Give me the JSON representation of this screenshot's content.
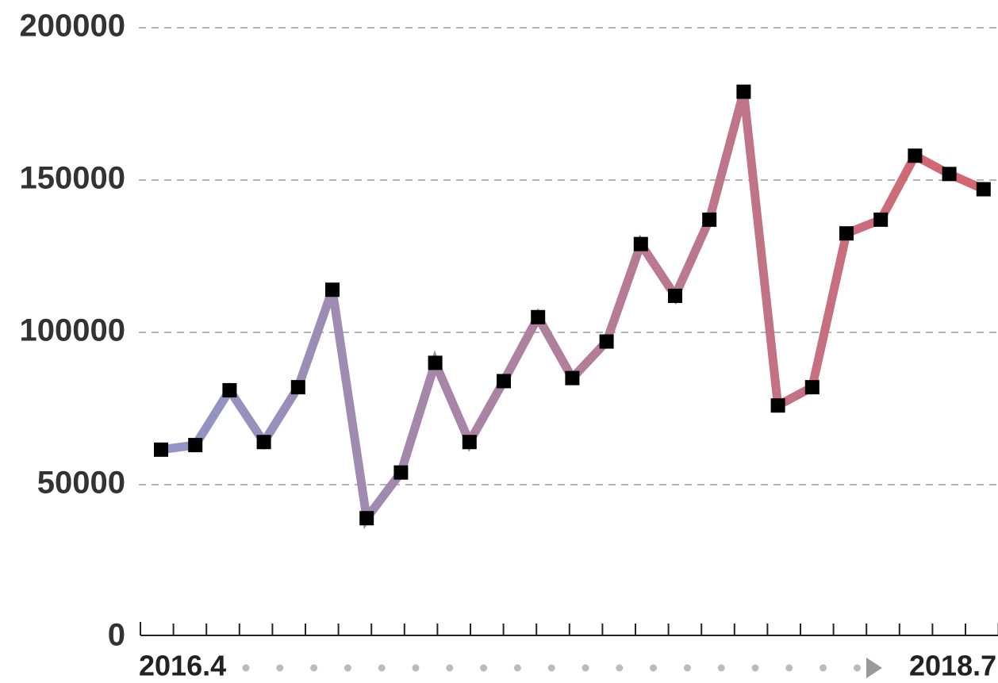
{
  "chart_data": {
    "type": "line",
    "x_start_label": "2016.4",
    "x_end_label": "2018.7",
    "series": [
      {
        "values": [
          61500,
          63000,
          81000,
          64000,
          82000,
          114000,
          39000,
          54000,
          90000,
          64000,
          84000,
          105000,
          85000,
          97000,
          129000,
          112000,
          137000,
          179000,
          76000,
          82000,
          132500,
          137000,
          158000,
          152000,
          147000
        ],
        "color_start": "#8f96c6",
        "color_end": "#d4666e",
        "marker_color": "#000000"
      }
    ],
    "ylim": [
      0,
      200000
    ],
    "yticks": [
      0,
      50000,
      100000,
      150000,
      200000
    ],
    "grid": true
  }
}
